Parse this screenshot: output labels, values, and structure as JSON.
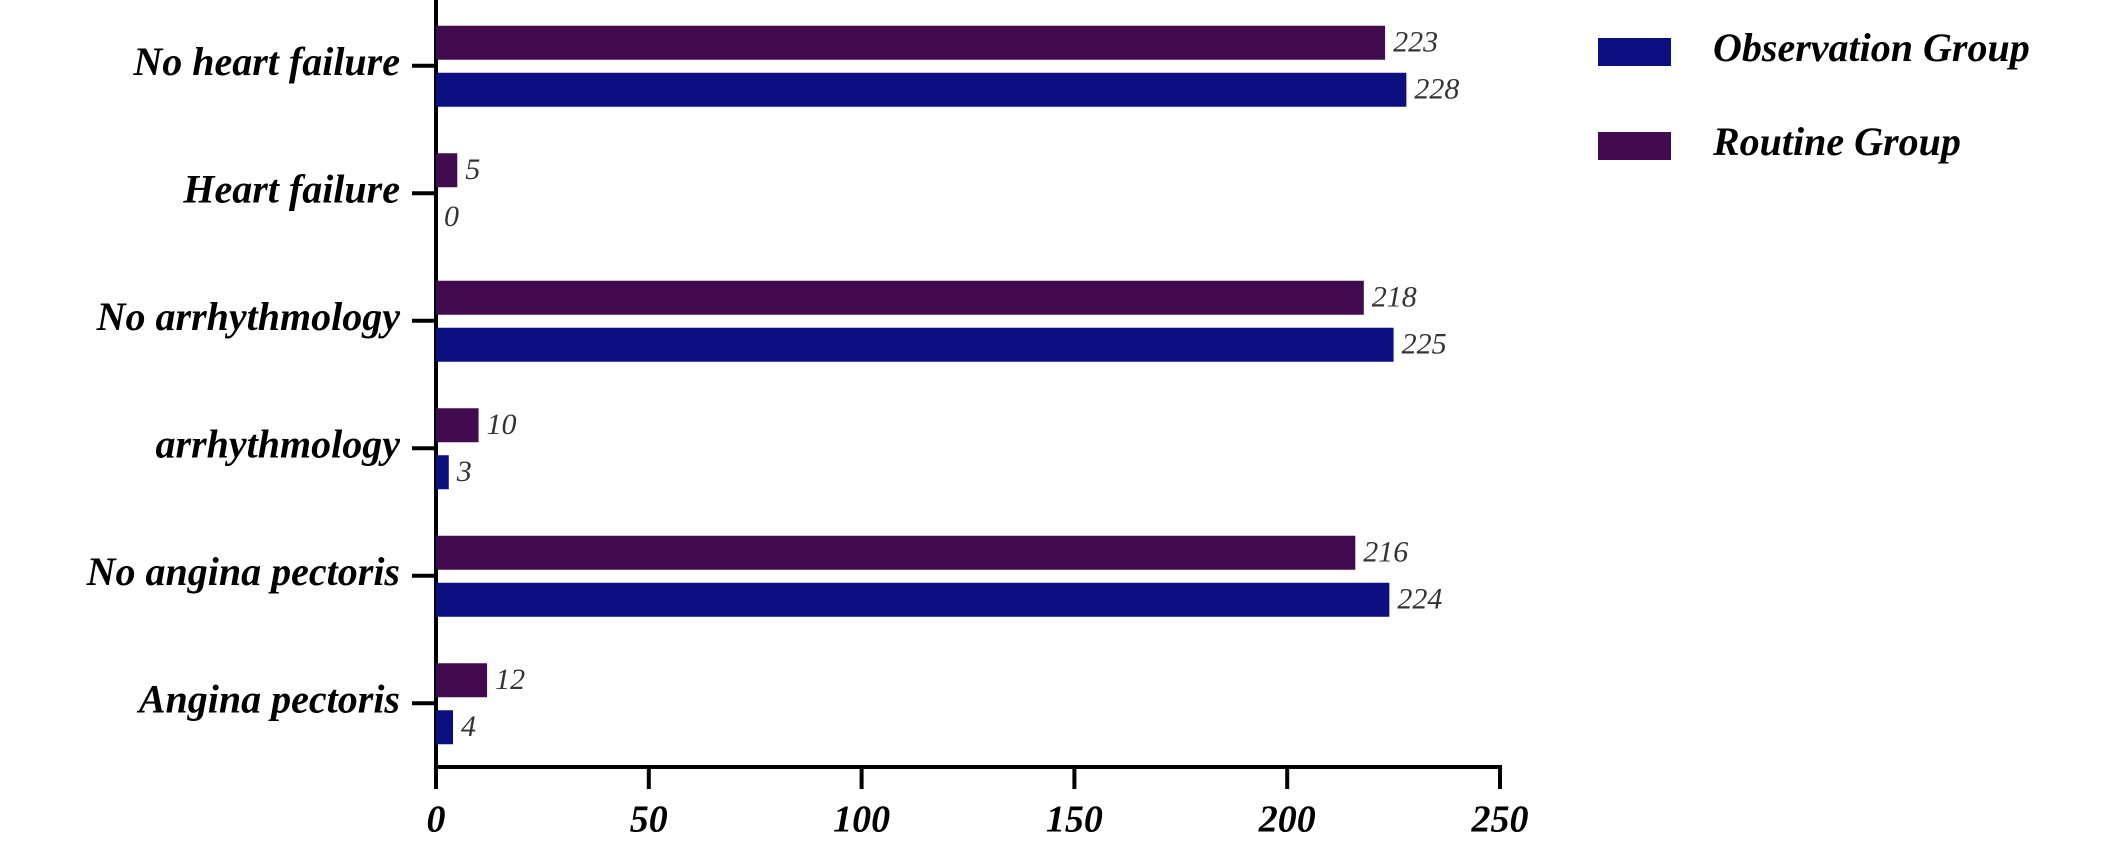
{
  "chart_data": {
    "type": "bar",
    "orientation": "horizontal",
    "categories": [
      "No heart failure",
      "Heart failure",
      "No arrhythmology",
      "arrhythmology",
      "No angina pectoris",
      "Angina pectoris"
    ],
    "series": [
      {
        "name": "Observation Group",
        "color": "#0b0f80",
        "values": [
          228,
          0,
          225,
          3,
          224,
          4
        ]
      },
      {
        "name": "Routine Group",
        "color": "#420a4f",
        "values": [
          223,
          5,
          218,
          10,
          216,
          12
        ]
      }
    ],
    "xlim": [
      0,
      250
    ],
    "xticks": [
      0,
      50,
      100,
      150,
      200,
      250
    ],
    "legend": "upper right"
  }
}
